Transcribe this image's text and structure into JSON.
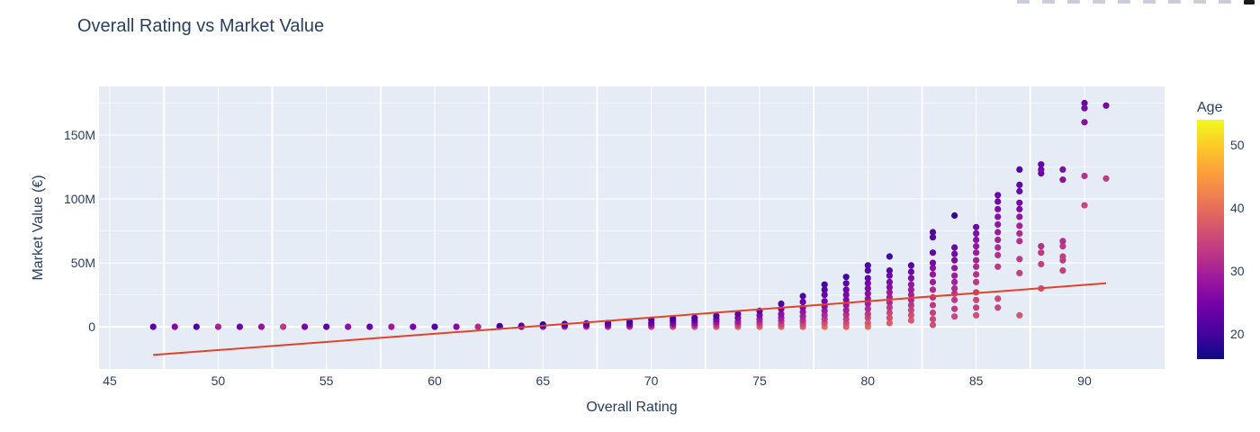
{
  "toolbar": {
    "icons": [
      "camera-icon",
      "zoom-icon",
      "pan-icon",
      "box-select-icon",
      "lasso-select-icon",
      "zoom-in-icon",
      "zoom-out-icon",
      "autoscale-icon",
      "reset-axes-icon",
      "plotly-logo-icon"
    ]
  },
  "chart_data": {
    "type": "scatter",
    "title": "Overall Rating vs Market Value",
    "xlabel": "Overall Rating",
    "ylabel": "Market Value (€)",
    "xlim": [
      44.5,
      93.7
    ],
    "ylim": [
      -33000000,
      188000000
    ],
    "x_ticks": [
      45,
      50,
      55,
      60,
      65,
      70,
      75,
      80,
      85,
      90
    ],
    "x_tick_labels": [
      "45",
      "50",
      "55",
      "60",
      "65",
      "70",
      "75",
      "80",
      "85",
      "90"
    ],
    "y_ticks": [
      0,
      50000000,
      100000000,
      150000000
    ],
    "y_tick_labels": [
      "0",
      "50M",
      "100M",
      "150M"
    ],
    "grid": true,
    "colorbar": {
      "title": "Age",
      "range": [
        16,
        54
      ],
      "ticks": [
        20,
        30,
        40,
        50
      ],
      "tick_labels": [
        "20",
        "30",
        "40",
        "50"
      ],
      "colorscale": [
        "#0d0887",
        "#46039f",
        "#7201a8",
        "#9c179e",
        "#bd3786",
        "#d8576b",
        "#ed7953",
        "#fb9f3a",
        "#fdca26",
        "#f0f921"
      ]
    },
    "trendline": {
      "x": [
        47,
        91
      ],
      "y": [
        -22000000,
        34000000
      ],
      "color": "#e0442c"
    },
    "series": [
      {
        "points": [
          [
            47,
            0,
            22
          ],
          [
            48,
            0,
            26
          ],
          [
            49,
            0,
            21
          ],
          [
            50,
            0,
            30
          ],
          [
            51,
            0,
            24
          ],
          [
            52,
            0,
            28
          ],
          [
            53,
            0,
            33
          ],
          [
            54,
            0,
            25
          ],
          [
            55,
            0,
            22
          ],
          [
            56,
            0,
            27
          ],
          [
            57,
            0,
            23
          ],
          [
            58,
            0,
            29
          ],
          [
            59,
            0,
            25
          ],
          [
            60,
            0,
            21
          ],
          [
            61,
            0,
            26
          ],
          [
            62,
            0,
            31
          ],
          [
            63,
            0,
            24
          ],
          [
            63,
            600000,
            20
          ],
          [
            64,
            0,
            27
          ],
          [
            64,
            800000,
            22
          ],
          [
            65,
            0,
            30
          ],
          [
            65,
            1000000,
            21
          ],
          [
            65,
            1800000,
            19
          ],
          [
            66,
            0,
            33
          ],
          [
            66,
            1000000,
            25
          ],
          [
            66,
            2200000,
            20
          ],
          [
            67,
            0,
            34
          ],
          [
            67,
            1200000,
            26
          ],
          [
            67,
            2600000,
            21
          ],
          [
            68,
            0,
            32
          ],
          [
            68,
            1400000,
            26
          ],
          [
            68,
            3000000,
            21
          ],
          [
            69,
            0,
            35
          ],
          [
            69,
            1000000,
            29
          ],
          [
            69,
            2200000,
            24
          ],
          [
            69,
            3800000,
            20
          ],
          [
            70,
            0,
            34
          ],
          [
            70,
            1500000,
            28
          ],
          [
            70,
            3000000,
            24
          ],
          [
            70,
            5500000,
            21
          ],
          [
            71,
            0,
            36
          ],
          [
            71,
            1500000,
            30
          ],
          [
            71,
            3000000,
            26
          ],
          [
            71,
            5000000,
            23
          ],
          [
            71,
            6500000,
            20
          ],
          [
            72,
            0,
            36
          ],
          [
            72,
            1500000,
            31
          ],
          [
            72,
            3000000,
            27
          ],
          [
            72,
            5000000,
            24
          ],
          [
            72,
            7000000,
            21
          ],
          [
            73,
            0,
            37
          ],
          [
            73,
            2000000,
            32
          ],
          [
            73,
            4000000,
            28
          ],
          [
            73,
            6000000,
            25
          ],
          [
            73,
            8500000,
            21
          ],
          [
            74,
            0,
            38
          ],
          [
            74,
            2000000,
            33
          ],
          [
            74,
            4000000,
            29
          ],
          [
            74,
            7000000,
            26
          ],
          [
            74,
            10000000,
            22
          ],
          [
            75,
            0,
            39
          ],
          [
            75,
            1500000,
            36
          ],
          [
            75,
            3500000,
            32
          ],
          [
            75,
            6000000,
            29
          ],
          [
            75,
            9000000,
            26
          ],
          [
            75,
            12500000,
            22
          ],
          [
            76,
            0,
            39
          ],
          [
            76,
            2000000,
            35
          ],
          [
            76,
            4500000,
            32
          ],
          [
            76,
            7000000,
            29
          ],
          [
            76,
            10000000,
            27
          ],
          [
            76,
            14000000,
            24
          ],
          [
            76,
            18000000,
            21
          ],
          [
            77,
            0,
            38
          ],
          [
            77,
            2500000,
            35
          ],
          [
            77,
            5000000,
            32
          ],
          [
            77,
            8000000,
            30
          ],
          [
            77,
            11500000,
            28
          ],
          [
            77,
            15000000,
            26
          ],
          [
            77,
            19500000,
            24
          ],
          [
            77,
            24000000,
            21
          ],
          [
            78,
            0,
            40
          ],
          [
            78,
            3000000,
            36
          ],
          [
            78,
            6000000,
            33
          ],
          [
            78,
            9000000,
            31
          ],
          [
            78,
            12500000,
            29
          ],
          [
            78,
            16000000,
            27
          ],
          [
            78,
            20000000,
            25
          ],
          [
            78,
            25000000,
            23
          ],
          [
            78,
            29000000,
            21
          ],
          [
            78,
            33000000,
            20
          ],
          [
            79,
            0,
            39
          ],
          [
            79,
            3000000,
            36
          ],
          [
            79,
            6000000,
            34
          ],
          [
            79,
            9500000,
            32
          ],
          [
            79,
            13000000,
            30
          ],
          [
            79,
            17000000,
            28
          ],
          [
            79,
            21000000,
            26
          ],
          [
            79,
            25000000,
            25
          ],
          [
            79,
            29000000,
            24
          ],
          [
            79,
            34000000,
            22
          ],
          [
            79,
            39000000,
            20
          ],
          [
            80,
            0,
            40
          ],
          [
            80,
            3000000,
            37
          ],
          [
            80,
            7000000,
            35
          ],
          [
            80,
            10000000,
            33
          ],
          [
            80,
            14000000,
            31
          ],
          [
            80,
            18000000,
            29
          ],
          [
            80,
            22000000,
            28
          ],
          [
            80,
            26000000,
            27
          ],
          [
            80,
            30000000,
            26
          ],
          [
            80,
            34000000,
            25
          ],
          [
            80,
            38000000,
            23
          ],
          [
            80,
            44000000,
            22
          ],
          [
            80,
            48000000,
            21
          ],
          [
            81,
            3000000,
            38
          ],
          [
            81,
            7000000,
            36
          ],
          [
            81,
            11000000,
            35
          ],
          [
            81,
            15000000,
            33
          ],
          [
            81,
            19000000,
            31
          ],
          [
            81,
            23000000,
            30
          ],
          [
            81,
            27000000,
            29
          ],
          [
            81,
            31000000,
            27
          ],
          [
            81,
            35000000,
            26
          ],
          [
            81,
            40000000,
            24
          ],
          [
            81,
            44000000,
            22
          ],
          [
            81,
            55000000,
            20
          ],
          [
            82,
            5000000,
            37
          ],
          [
            82,
            9000000,
            36
          ],
          [
            82,
            13000000,
            35
          ],
          [
            82,
            17000000,
            33
          ],
          [
            82,
            21000000,
            31
          ],
          [
            82,
            25000000,
            30
          ],
          [
            82,
            29000000,
            29
          ],
          [
            82,
            33000000,
            28
          ],
          [
            82,
            38000000,
            26
          ],
          [
            82,
            43000000,
            24
          ],
          [
            82,
            48000000,
            22
          ],
          [
            83,
            1500000,
            36
          ],
          [
            83,
            6000000,
            35
          ],
          [
            83,
            11000000,
            34
          ],
          [
            83,
            17000000,
            33
          ],
          [
            83,
            23000000,
            32
          ],
          [
            83,
            29000000,
            31
          ],
          [
            83,
            35000000,
            29
          ],
          [
            83,
            41000000,
            28
          ],
          [
            83,
            46000000,
            27
          ],
          [
            83,
            50000000,
            25
          ],
          [
            83,
            58000000,
            23
          ],
          [
            83,
            70000000,
            22
          ],
          [
            83,
            74000000,
            21
          ],
          [
            84,
            8000000,
            35
          ],
          [
            84,
            14000000,
            33
          ],
          [
            84,
            21000000,
            33
          ],
          [
            84,
            26000000,
            32
          ],
          [
            84,
            30000000,
            31
          ],
          [
            84,
            35000000,
            30
          ],
          [
            84,
            40000000,
            29
          ],
          [
            84,
            46000000,
            28
          ],
          [
            84,
            52000000,
            26
          ],
          [
            84,
            57000000,
            25
          ],
          [
            84,
            62000000,
            24
          ],
          [
            84,
            87000000,
            19
          ],
          [
            85,
            9000000,
            36
          ],
          [
            85,
            15000000,
            34
          ],
          [
            85,
            21000000,
            35
          ],
          [
            85,
            27000000,
            34
          ],
          [
            85,
            35000000,
            33
          ],
          [
            85,
            41000000,
            32
          ],
          [
            85,
            47000000,
            31
          ],
          [
            85,
            52000000,
            30
          ],
          [
            85,
            58000000,
            29
          ],
          [
            85,
            63000000,
            28
          ],
          [
            85,
            68000000,
            27
          ],
          [
            85,
            73000000,
            26
          ],
          [
            85,
            78000000,
            24
          ],
          [
            86,
            15000000,
            35
          ],
          [
            86,
            22000000,
            35
          ],
          [
            86,
            47000000,
            33
          ],
          [
            86,
            56000000,
            32
          ],
          [
            86,
            62000000,
            31
          ],
          [
            86,
            68000000,
            30
          ],
          [
            86,
            74000000,
            29
          ],
          [
            86,
            80000000,
            28
          ],
          [
            86,
            86000000,
            27
          ],
          [
            86,
            92000000,
            26
          ],
          [
            86,
            98000000,
            25
          ],
          [
            86,
            103000000,
            24
          ],
          [
            87,
            9000000,
            37
          ],
          [
            87,
            42000000,
            34
          ],
          [
            87,
            53000000,
            33
          ],
          [
            87,
            67000000,
            32
          ],
          [
            87,
            73000000,
            31
          ],
          [
            87,
            79000000,
            30
          ],
          [
            87,
            86000000,
            28
          ],
          [
            87,
            92000000,
            26
          ],
          [
            87,
            97000000,
            25
          ],
          [
            87,
            106000000,
            24
          ],
          [
            87,
            111000000,
            23
          ],
          [
            87,
            123000000,
            22
          ],
          [
            88,
            30000000,
            36
          ],
          [
            88,
            49000000,
            34
          ],
          [
            88,
            58000000,
            33
          ],
          [
            88,
            63000000,
            32
          ],
          [
            88,
            120000000,
            24
          ],
          [
            88,
            123000000,
            25
          ],
          [
            88,
            127000000,
            23
          ],
          [
            89,
            44000000,
            34
          ],
          [
            89,
            52000000,
            33
          ],
          [
            89,
            55000000,
            34
          ],
          [
            89,
            63000000,
            33
          ],
          [
            89,
            67000000,
            32
          ],
          [
            89,
            115000000,
            27
          ],
          [
            89,
            123000000,
            26
          ],
          [
            90,
            95000000,
            35
          ],
          [
            90,
            118000000,
            32
          ],
          [
            90,
            160000000,
            27
          ],
          [
            90,
            171000000,
            25
          ],
          [
            90,
            175000000,
            24
          ],
          [
            91,
            116000000,
            33
          ],
          [
            91,
            173000000,
            25
          ]
        ]
      }
    ]
  }
}
